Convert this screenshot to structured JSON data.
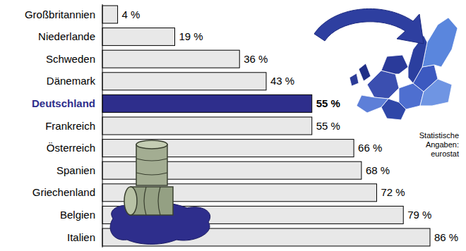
{
  "chart_data": {
    "type": "bar",
    "orientation": "horizontal",
    "categories": [
      "Großbritannien",
      "Niederlande",
      "Schweden",
      "Dänemark",
      "Deutschland",
      "Frankreich",
      "Österreich",
      "Spanien",
      "Griechenland",
      "Belgien",
      "Italien"
    ],
    "values": [
      4,
      19,
      36,
      43,
      55,
      55,
      66,
      68,
      72,
      79,
      86
    ],
    "value_labels": [
      "4 %",
      "19 %",
      "36 %",
      "43 %",
      "55 %",
      "55 %",
      "66 %",
      "68 %",
      "72 %",
      "79 %",
      "86 %"
    ],
    "colors": [
      "#e8e8e8",
      "#e8e8e8",
      "#e8e8e8",
      "#e8e8e8",
      "#2e2e8c",
      "#e8e8e8",
      "#e8e8e8",
      "#e8e8e8",
      "#e8e8e8",
      "#e8e8e8",
      "#e8e8e8"
    ],
    "ylim": [
      0,
      86
    ],
    "data_labels": true,
    "tick_labels": "x",
    "annotations": [
      "Statistische",
      "Angaben:",
      "eurostat"
    ]
  }
}
